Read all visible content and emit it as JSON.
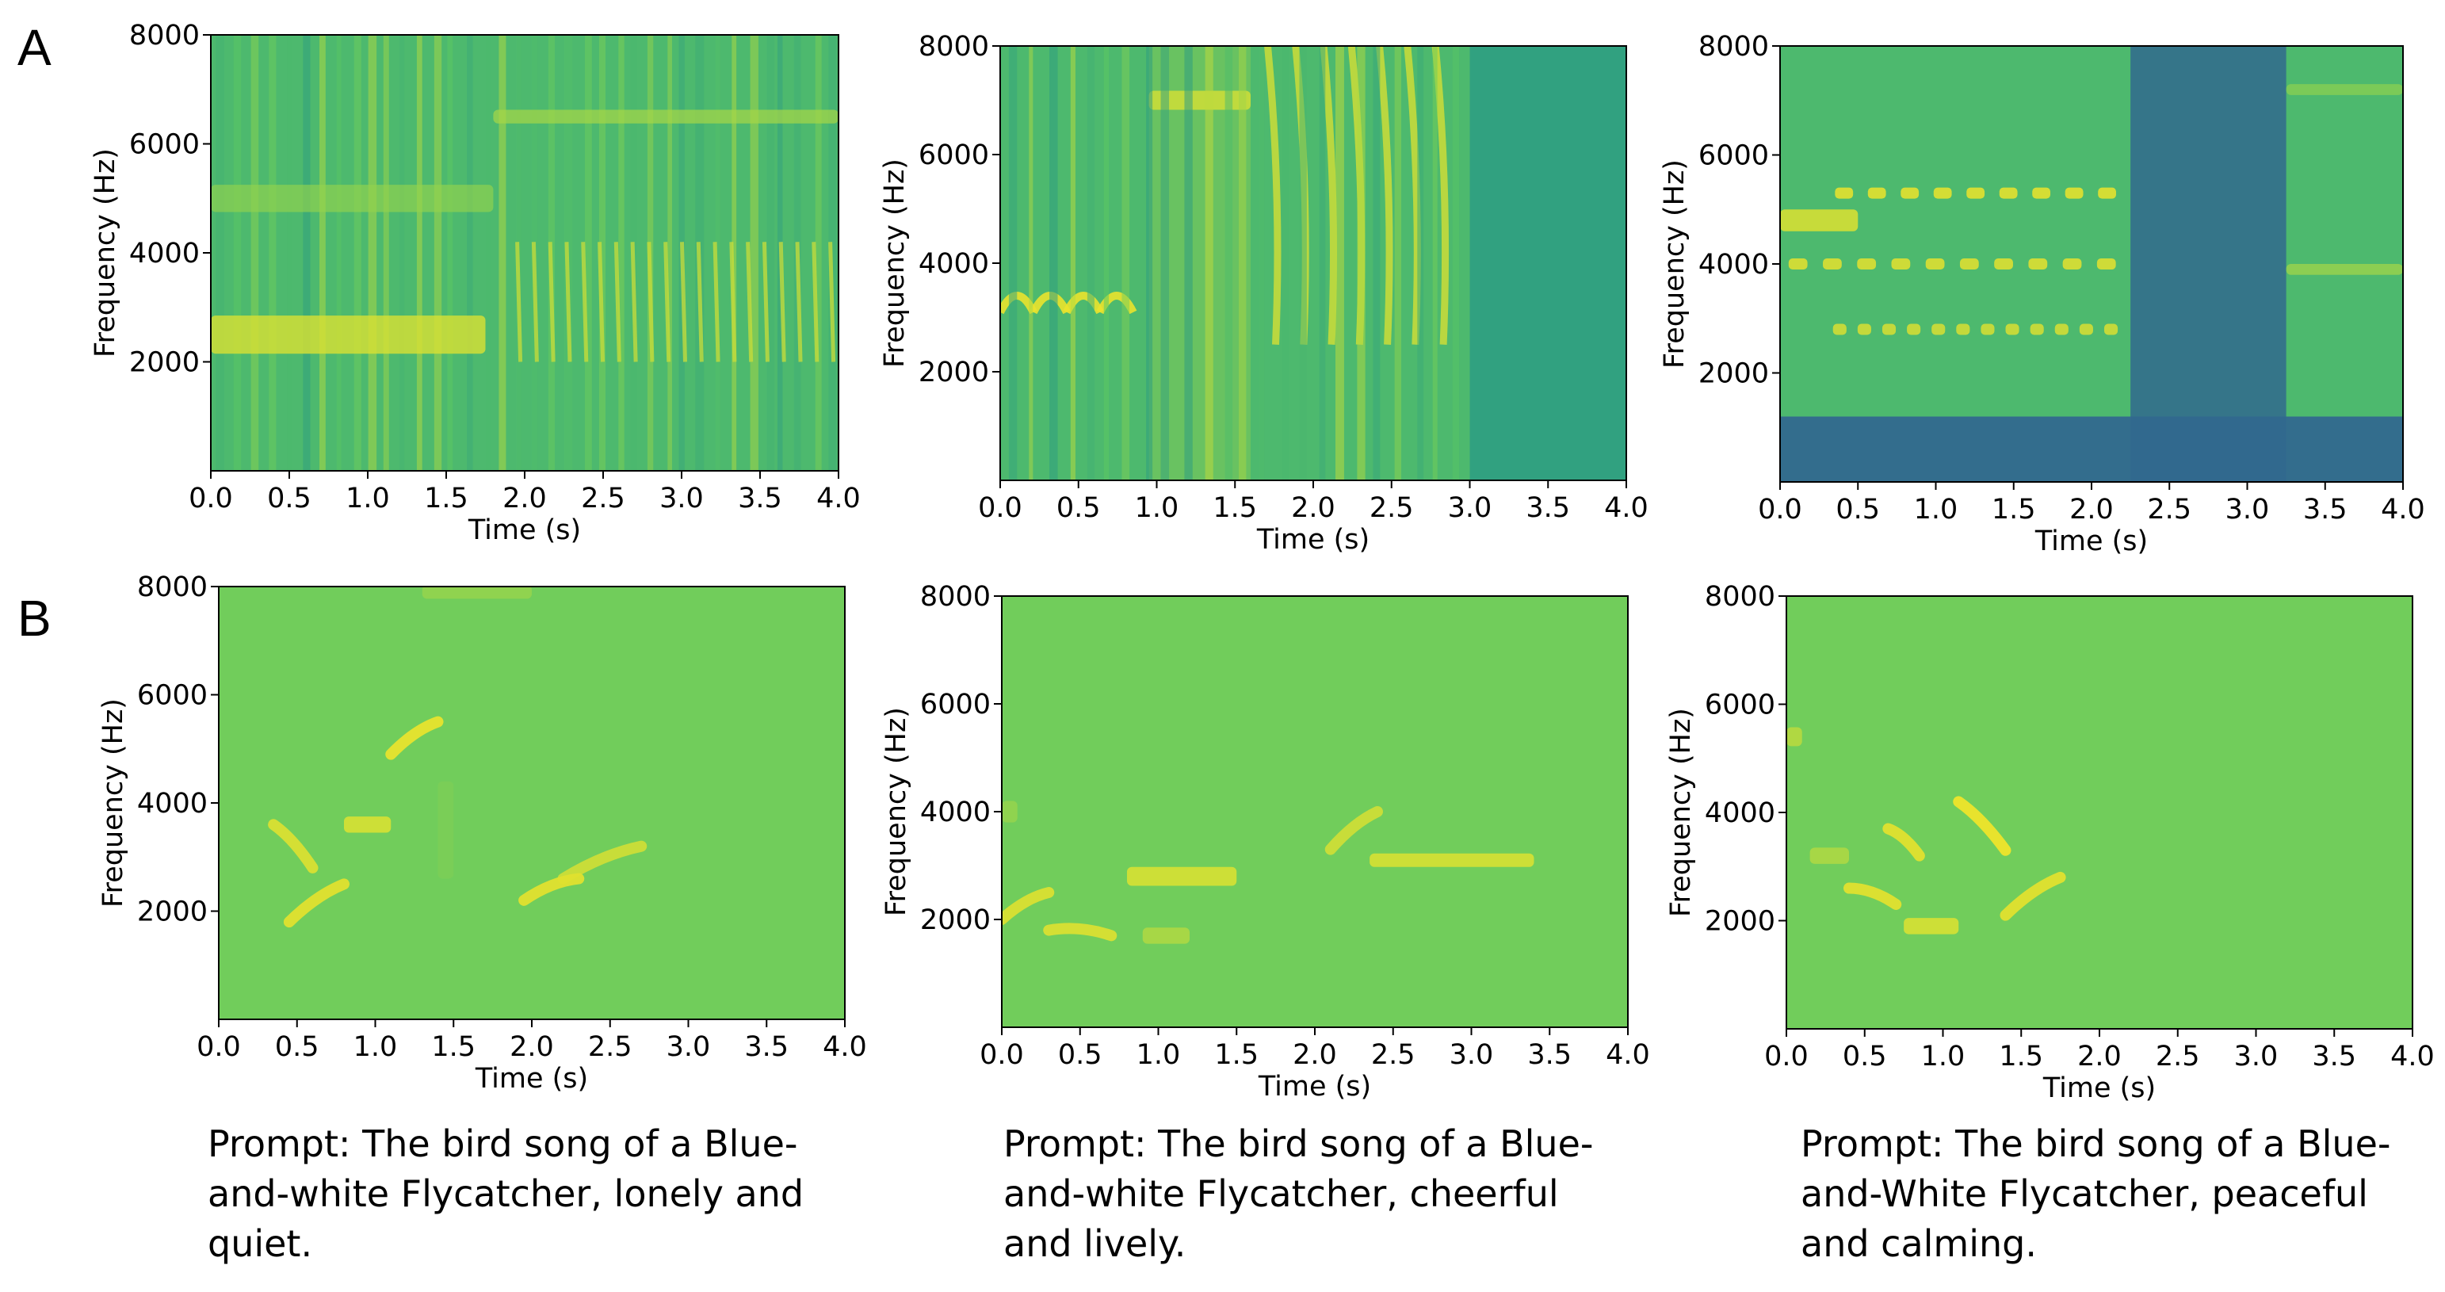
{
  "panel_labels": {
    "a": "A",
    "b": "B"
  },
  "captions": [
    {
      "lines": [
        "Prompt: The bird song of a Blue-",
        "and-white Flycatcher, lonely and",
        "quiet."
      ]
    },
    {
      "lines": [
        "Prompt: The bird song of a Blue-",
        "and-white Flycatcher, cheerful",
        "and lively."
      ]
    },
    {
      "lines": [
        "Prompt: The bird song of a Blue-",
        "and-White Flycatcher, peaceful",
        "and calming."
      ]
    }
  ],
  "colors": {
    "low_energy": "#31688e",
    "mid_energy": "#35b779",
    "high_energy": "#fde725",
    "axis": "#000000"
  },
  "chart_data": [
    {
      "type": "heatmap",
      "row": "A",
      "column": 1,
      "xlabel": "Time (s)",
      "ylabel": "Frequency (Hz)",
      "xlim": [
        0,
        4
      ],
      "ylim": [
        0,
        8000
      ],
      "xticks": [
        "0.0",
        "0.5",
        "1.0",
        "1.5",
        "2.0",
        "2.5",
        "3.0",
        "3.5",
        "4.0"
      ],
      "yticks": [
        "2000",
        "4000",
        "6000",
        "8000"
      ],
      "colormap": "viridis",
      "features": [
        {
          "kind": "broadband_clicks",
          "t_start": 0.0,
          "t_end": 4.0,
          "count": 38
        },
        {
          "kind": "tone",
          "t_start": 0.0,
          "t_end": 1.75,
          "freq_hz": 2500,
          "intensity": 0.8,
          "width_hz": 700
        },
        {
          "kind": "tone",
          "t_start": 0.0,
          "t_end": 1.8,
          "freq_hz": 5000,
          "intensity": 0.45,
          "width_hz": 500
        },
        {
          "kind": "harmonic_stack",
          "t_start": 1.9,
          "t_end": 4.0,
          "count": 20,
          "f_low": 2000,
          "f_high": 4200,
          "intensity": 0.75
        },
        {
          "kind": "tone",
          "t_start": 1.8,
          "t_end": 4.0,
          "freq_hz": 6500,
          "intensity": 0.55,
          "width_hz": 250
        }
      ]
    },
    {
      "type": "heatmap",
      "row": "A",
      "column": 2,
      "xlabel": "Time (s)",
      "ylabel": "Frequency (Hz)",
      "xlim": [
        0,
        4
      ],
      "ylim": [
        0,
        8000
      ],
      "xticks": [
        "0.0",
        "0.5",
        "1.0",
        "1.5",
        "2.0",
        "2.5",
        "3.0",
        "3.5",
        "4.0"
      ],
      "yticks": [
        "2000",
        "4000",
        "6000",
        "8000"
      ],
      "colormap": "viridis",
      "features": [
        {
          "kind": "arches",
          "t_start": 0.0,
          "t_end": 0.85,
          "count": 4,
          "freq_hz": 3300,
          "intensity": 0.95
        },
        {
          "kind": "tone",
          "t_start": 0.95,
          "t_end": 1.6,
          "freq_hz": 7000,
          "intensity": 0.9,
          "width_hz": 350
        },
        {
          "kind": "wideband_block",
          "t_start": 0.95,
          "t_end": 1.6,
          "intensity": 0.35
        },
        {
          "kind": "sweeps",
          "t_start": 1.65,
          "t_end": 2.9,
          "count": 7,
          "f_low": 2500,
          "f_high": 8000,
          "intensity": 0.85
        },
        {
          "kind": "broadband_clicks",
          "t_start": 0.0,
          "t_end": 2.95,
          "count": 24
        },
        {
          "kind": "quiet",
          "t_start": 3.0,
          "t_end": 4.0
        }
      ]
    },
    {
      "type": "heatmap",
      "row": "A",
      "column": 3,
      "xlabel": "Time (s)",
      "ylabel": "Frequency (Hz)",
      "xlim": [
        0,
        4
      ],
      "ylim": [
        0,
        8000
      ],
      "xticks": [
        "0.0",
        "0.5",
        "1.0",
        "1.5",
        "2.0",
        "2.5",
        "3.0",
        "3.5",
        "4.0"
      ],
      "yticks": [
        "2000",
        "4000",
        "6000",
        "8000"
      ],
      "colormap": "viridis",
      "features": [
        {
          "kind": "low_band_dark",
          "t_start": 0.0,
          "t_end": 4.0,
          "f_low": 0,
          "f_high": 1200
        },
        {
          "kind": "dark_gap",
          "t_start": 2.25,
          "t_end": 3.25
        },
        {
          "kind": "dashes",
          "t_start": 0.3,
          "t_end": 2.2,
          "freq_hz": 5300,
          "count": 9,
          "intensity": 0.9
        },
        {
          "kind": "dashes",
          "t_start": 0.0,
          "t_end": 2.2,
          "freq_hz": 4000,
          "count": 10,
          "intensity": 0.8
        },
        {
          "kind": "dashes",
          "t_start": 0.3,
          "t_end": 2.2,
          "freq_hz": 2800,
          "count": 12,
          "intensity": 0.65
        },
        {
          "kind": "tone",
          "t_start": 0.0,
          "t_end": 0.5,
          "freq_hz": 4800,
          "intensity": 0.85,
          "width_hz": 400
        },
        {
          "kind": "tone",
          "t_start": 3.25,
          "t_end": 4.0,
          "freq_hz": 3900,
          "intensity": 0.55,
          "width_hz": 200
        },
        {
          "kind": "tone",
          "t_start": 3.25,
          "t_end": 4.0,
          "freq_hz": 7200,
          "intensity": 0.45,
          "width_hz": 200
        }
      ]
    },
    {
      "type": "heatmap",
      "row": "B",
      "column": 1,
      "xlabel": "Time (s)",
      "ylabel": "Frequency (Hz)",
      "xlim": [
        0,
        4
      ],
      "ylim": [
        0,
        8000
      ],
      "xticks": [
        "0.0",
        "0.5",
        "1.0",
        "1.5",
        "2.0",
        "2.5",
        "3.0",
        "3.5",
        "4.0"
      ],
      "yticks": [
        "2000",
        "4000",
        "6000",
        "8000"
      ],
      "colormap": "viridis",
      "features": [
        {
          "kind": "tone",
          "t_start": 1.3,
          "t_end": 2.0,
          "freq_hz": 7900,
          "intensity": 0.5,
          "width_hz": 250
        },
        {
          "kind": "sweep",
          "t_start": 0.35,
          "t_end": 0.6,
          "f_start": 3600,
          "f_end": 2800,
          "intensity": 0.8
        },
        {
          "kind": "sweep",
          "t_start": 0.45,
          "t_end": 0.8,
          "f_start": 1800,
          "f_end": 2500,
          "intensity": 0.85
        },
        {
          "kind": "tone",
          "t_start": 0.8,
          "t_end": 1.1,
          "freq_hz": 3600,
          "intensity": 0.85,
          "width_hz": 300
        },
        {
          "kind": "sweep",
          "t_start": 1.1,
          "t_end": 1.4,
          "f_start": 4900,
          "f_end": 5500,
          "intensity": 0.9
        },
        {
          "kind": "tone",
          "t_start": 1.4,
          "t_end": 1.5,
          "freq_hz": 3500,
          "intensity": 0.35,
          "width_hz": 1800
        },
        {
          "kind": "sweep",
          "t_start": 1.95,
          "t_end": 2.3,
          "f_start": 2200,
          "f_end": 2600,
          "intensity": 0.85
        },
        {
          "kind": "sweep",
          "t_start": 2.2,
          "t_end": 2.7,
          "f_start": 2600,
          "f_end": 3200,
          "intensity": 0.7
        }
      ]
    },
    {
      "type": "heatmap",
      "row": "B",
      "column": 2,
      "xlabel": "Time (s)",
      "ylabel": "Frequency (Hz)",
      "xlim": [
        0,
        4
      ],
      "ylim": [
        0,
        8000
      ],
      "xticks": [
        "0.0",
        "0.5",
        "1.0",
        "1.5",
        "2.0",
        "2.5",
        "3.0",
        "3.5",
        "4.0"
      ],
      "yticks": [
        "2000",
        "4000",
        "6000",
        "8000"
      ],
      "colormap": "viridis",
      "features": [
        {
          "kind": "sweep",
          "t_start": 0.0,
          "t_end": 0.3,
          "f_start": 2000,
          "f_end": 2500,
          "intensity": 0.8
        },
        {
          "kind": "sweep",
          "t_start": 0.3,
          "t_end": 0.7,
          "f_start": 1800,
          "f_end": 1700,
          "intensity": 0.8
        },
        {
          "kind": "tone",
          "t_start": 0.8,
          "t_end": 1.5,
          "freq_hz": 2800,
          "intensity": 0.85,
          "width_hz": 350
        },
        {
          "kind": "tone",
          "t_start": 0.9,
          "t_end": 1.2,
          "freq_hz": 1700,
          "intensity": 0.65,
          "width_hz": 300
        },
        {
          "kind": "tone",
          "t_start": 0.0,
          "t_end": 0.1,
          "freq_hz": 4000,
          "intensity": 0.5,
          "width_hz": 400
        },
        {
          "kind": "sweep",
          "t_start": 2.1,
          "t_end": 2.4,
          "f_start": 3300,
          "f_end": 4000,
          "intensity": 0.7
        },
        {
          "kind": "tone",
          "t_start": 2.35,
          "t_end": 3.4,
          "freq_hz": 3100,
          "intensity": 0.85,
          "width_hz": 250
        }
      ]
    },
    {
      "type": "heatmap",
      "row": "B",
      "column": 3,
      "xlabel": "Time (s)",
      "ylabel": "Frequency (Hz)",
      "xlim": [
        0,
        4
      ],
      "ylim": [
        0,
        8000
      ],
      "xticks": [
        "0.0",
        "0.5",
        "1.0",
        "1.5",
        "2.0",
        "2.5",
        "3.0",
        "3.5",
        "4.0"
      ],
      "yticks": [
        "2000",
        "4000",
        "6000",
        "8000"
      ],
      "colormap": "viridis",
      "features": [
        {
          "kind": "tone",
          "t_start": 0.0,
          "t_end": 0.1,
          "freq_hz": 5400,
          "intensity": 0.7,
          "width_hz": 350
        },
        {
          "kind": "tone",
          "t_start": 0.15,
          "t_end": 0.4,
          "freq_hz": 3200,
          "intensity": 0.65,
          "width_hz": 300
        },
        {
          "kind": "sweep",
          "t_start": 0.4,
          "t_end": 0.7,
          "f_start": 2600,
          "f_end": 2300,
          "intensity": 0.85
        },
        {
          "kind": "sweep",
          "t_start": 0.65,
          "t_end": 0.85,
          "f_start": 3700,
          "f_end": 3200,
          "intensity": 0.85
        },
        {
          "kind": "tone",
          "t_start": 0.75,
          "t_end": 1.1,
          "freq_hz": 1900,
          "intensity": 0.85,
          "width_hz": 300
        },
        {
          "kind": "sweep",
          "t_start": 1.1,
          "t_end": 1.4,
          "f_start": 4200,
          "f_end": 3300,
          "intensity": 0.95
        },
        {
          "kind": "sweep",
          "t_start": 1.4,
          "t_end": 1.75,
          "f_start": 2100,
          "f_end": 2800,
          "intensity": 0.85
        }
      ]
    }
  ]
}
